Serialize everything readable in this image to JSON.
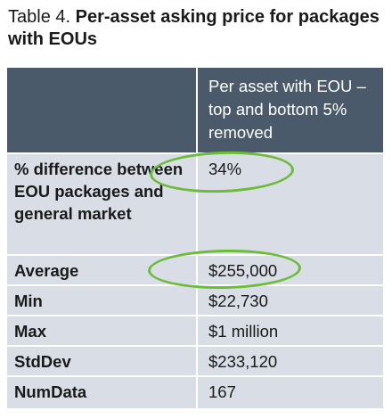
{
  "caption": {
    "lead": "Table 4.",
    "title": "Per-asset asking price for packages with EOUs"
  },
  "table": {
    "header": {
      "corner": "",
      "column": "Per asset with EOU – top and bottom 5% removed"
    },
    "rows": [
      {
        "label": "% difference between EOU packages and general market",
        "value": "34%"
      },
      {
        "label": "Average",
        "value": "$255,000"
      },
      {
        "label": "Min",
        "value": "$22,730"
      },
      {
        "label": "Max",
        "value": "$1 million"
      },
      {
        "label": "StdDev",
        "value": "$233,120"
      },
      {
        "label": "NumData",
        "value": "167"
      }
    ]
  },
  "colors": {
    "header_bg": "#4a5a6a",
    "row_bg": "#d9dde5",
    "highlight_ellipse": "#6dbb3a"
  }
}
